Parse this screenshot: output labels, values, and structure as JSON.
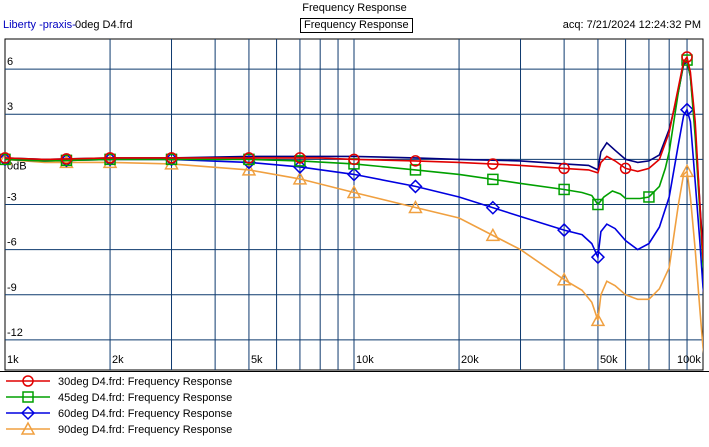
{
  "header": {
    "title": "Frequency Response",
    "app": "Liberty -praxis-",
    "file": "0deg D4.frd",
    "boxed_title": "Frequency Response",
    "acquired": "acq: 7/21/2024 12:24:32 PM"
  },
  "chart_data": {
    "type": "line",
    "title": "Frequency Response",
    "x_scale": "log",
    "xlim": [
      1000,
      100000
    ],
    "ylim": [
      -14,
      8
    ],
    "grid": true,
    "x_tick_labels": [
      {
        "value": 1000,
        "label": "1k"
      },
      {
        "value": 2000,
        "label": "2k"
      },
      {
        "value": 5000,
        "label": "5k"
      },
      {
        "value": 10000,
        "label": "10k"
      },
      {
        "value": 20000,
        "label": "20k"
      },
      {
        "value": 50000,
        "label": "50k"
      },
      {
        "value": 100000,
        "label": "100k"
      }
    ],
    "y_tick_labels": [
      {
        "value": 6,
        "label": "6"
      },
      {
        "value": 3,
        "label": "3"
      },
      {
        "value": 0,
        "label": "0dB"
      },
      {
        "value": -3,
        "label": "-3"
      },
      {
        "value": -6,
        "label": "-6"
      },
      {
        "value": -9,
        "label": "-9"
      },
      {
        "value": -12,
        "label": "-12"
      }
    ],
    "legend_position": "bottom",
    "series": [
      {
        "name": "0deg D4.frd: Frequency Response",
        "color": "#000080",
        "marker": "none",
        "points": [
          [
            1000,
            0.1
          ],
          [
            1300,
            0
          ],
          [
            2000,
            0.1
          ],
          [
            3000,
            0.1
          ],
          [
            5000,
            0.2
          ],
          [
            8000,
            0.2
          ],
          [
            10000,
            0.2
          ],
          [
            15000,
            0.1
          ],
          [
            20000,
            0
          ],
          [
            30000,
            -0.1
          ],
          [
            40000,
            -0.3
          ],
          [
            47000,
            -0.4
          ],
          [
            50000,
            -0.7
          ],
          [
            51000,
            0.5
          ],
          [
            53000,
            1.1
          ],
          [
            56000,
            0.6
          ],
          [
            60000,
            0
          ],
          [
            65000,
            -0.2
          ],
          [
            70000,
            -0.1
          ],
          [
            75000,
            0.3
          ],
          [
            80000,
            2
          ],
          [
            85000,
            4.5
          ],
          [
            88000,
            6.3
          ],
          [
            90000,
            6.5
          ],
          [
            92000,
            5.5
          ],
          [
            95000,
            2
          ],
          [
            98000,
            -3
          ],
          [
            100000,
            -6
          ],
          [
            102000,
            -7.5
          ]
        ]
      },
      {
        "name": "30deg D4.frd:  Frequency Response",
        "color": "#e00000",
        "marker": "circle",
        "points": [
          [
            1000,
            0.1
          ],
          [
            1300,
            0
          ],
          [
            2000,
            0.1
          ],
          [
            3000,
            0.1
          ],
          [
            5000,
            0.1
          ],
          [
            8000,
            0.1
          ],
          [
            10000,
            0
          ],
          [
            15000,
            -0.1
          ],
          [
            20000,
            -0.2
          ],
          [
            30000,
            -0.4
          ],
          [
            40000,
            -0.6
          ],
          [
            47000,
            -0.7
          ],
          [
            50000,
            -0.9
          ],
          [
            51000,
            -0.2
          ],
          [
            53000,
            0.2
          ],
          [
            56000,
            -0.1
          ],
          [
            60000,
            -0.6
          ],
          [
            65000,
            -0.8
          ],
          [
            70000,
            -0.6
          ],
          [
            75000,
            0
          ],
          [
            80000,
            1.8
          ],
          [
            85000,
            4.8
          ],
          [
            88000,
            6.5
          ],
          [
            90000,
            6.8
          ],
          [
            92000,
            5.8
          ],
          [
            95000,
            2.5
          ],
          [
            98000,
            -3
          ],
          [
            100000,
            -6.5
          ],
          [
            102000,
            -8
          ]
        ],
        "markers_x": [
          1000,
          1500,
          2000,
          3000,
          5000,
          7000,
          10000,
          15000,
          25000,
          40000,
          60000,
          90000
        ]
      },
      {
        "name": "45deg D4.frd:  Frequency Response",
        "color": "#00a000",
        "marker": "square",
        "points": [
          [
            1000,
            0
          ],
          [
            1300,
            -0.1
          ],
          [
            2000,
            0
          ],
          [
            3000,
            0
          ],
          [
            5000,
            0
          ],
          [
            7000,
            -0.1
          ],
          [
            10000,
            -0.3
          ],
          [
            15000,
            -0.7
          ],
          [
            20000,
            -1
          ],
          [
            30000,
            -1.6
          ],
          [
            40000,
            -2
          ],
          [
            45000,
            -2.2
          ],
          [
            48000,
            -2.4
          ],
          [
            50000,
            -3
          ],
          [
            52000,
            -2.5
          ],
          [
            55000,
            -2.1
          ],
          [
            58000,
            -2.3
          ],
          [
            60000,
            -2.6
          ],
          [
            66000,
            -2.6
          ],
          [
            70000,
            -2.5
          ],
          [
            75000,
            -1.8
          ],
          [
            78000,
            -0.6
          ],
          [
            80000,
            0.5
          ],
          [
            85000,
            4.5
          ],
          [
            88000,
            6.4
          ],
          [
            90000,
            6.6
          ],
          [
            92000,
            5.5
          ],
          [
            95000,
            1.5
          ],
          [
            98000,
            -3.5
          ],
          [
            100000,
            -7
          ],
          [
            102000,
            -8.5
          ]
        ],
        "markers_x": [
          1000,
          1500,
          2000,
          3000,
          5000,
          7000,
          10000,
          15000,
          25000,
          40000,
          50000,
          70000,
          90000
        ]
      },
      {
        "name": "60deg D4.frd:  Frequency Response",
        "color": "#0000e0",
        "marker": "diamond",
        "points": [
          [
            1000,
            0
          ],
          [
            1300,
            -0.1
          ],
          [
            2000,
            0
          ],
          [
            3000,
            0
          ],
          [
            5000,
            -0.2
          ],
          [
            7000,
            -0.5
          ],
          [
            10000,
            -1
          ],
          [
            15000,
            -1.8
          ],
          [
            20000,
            -2.5
          ],
          [
            30000,
            -3.8
          ],
          [
            40000,
            -4.7
          ],
          [
            45000,
            -5
          ],
          [
            48000,
            -5.6
          ],
          [
            50000,
            -6.5
          ],
          [
            51000,
            -4.8
          ],
          [
            53000,
            -4.3
          ],
          [
            56000,
            -4.6
          ],
          [
            60000,
            -5.4
          ],
          [
            65000,
            -6
          ],
          [
            70000,
            -5.6
          ],
          [
            75000,
            -4.5
          ],
          [
            80000,
            -2.5
          ],
          [
            85000,
            1
          ],
          [
            88000,
            2.9
          ],
          [
            90000,
            3.3
          ],
          [
            92000,
            2.5
          ],
          [
            95000,
            -1.5
          ],
          [
            98000,
            -5.5
          ],
          [
            100000,
            -8.5
          ],
          [
            102000,
            -10
          ]
        ],
        "markers_x": [
          1000,
          1500,
          2000,
          3000,
          5000,
          7000,
          10000,
          15000,
          25000,
          40000,
          50000,
          90000
        ]
      },
      {
        "name": "90deg D4.frd:  Frequency Response",
        "color": "#f0a040",
        "marker": "triangle",
        "points": [
          [
            1000,
            0
          ],
          [
            1300,
            -0.2
          ],
          [
            2000,
            -0.2
          ],
          [
            3000,
            -0.3
          ],
          [
            5000,
            -0.7
          ],
          [
            7000,
            -1.3
          ],
          [
            10000,
            -2.2
          ],
          [
            15000,
            -3.2
          ],
          [
            20000,
            -3.9
          ],
          [
            30000,
            -6
          ],
          [
            40000,
            -8
          ],
          [
            45000,
            -8.7
          ],
          [
            48000,
            -9.5
          ],
          [
            50000,
            -10.7
          ],
          [
            51000,
            -9
          ],
          [
            53000,
            -8.1
          ],
          [
            56000,
            -8.4
          ],
          [
            60000,
            -9
          ],
          [
            65000,
            -9.3
          ],
          [
            70000,
            -9.3
          ],
          [
            75000,
            -8.6
          ],
          [
            80000,
            -7.2
          ],
          [
            85000,
            -3
          ],
          [
            88000,
            -1
          ],
          [
            90000,
            -0.8
          ],
          [
            92000,
            -2.5
          ],
          [
            95000,
            -6
          ],
          [
            98000,
            -10
          ],
          [
            100000,
            -12.5
          ],
          [
            102000,
            -14
          ]
        ],
        "markers_x": [
          1000,
          1500,
          2000,
          3000,
          5000,
          7000,
          10000,
          15000,
          25000,
          40000,
          50000,
          90000
        ]
      }
    ]
  },
  "legend": [
    {
      "name": "30deg D4.frd:  Frequency Response"
    },
    {
      "name": "45deg D4.frd:  Frequency Response"
    },
    {
      "name": "60deg D4.frd:  Frequency Response"
    },
    {
      "name": "90deg D4.frd:  Frequency Response"
    }
  ]
}
